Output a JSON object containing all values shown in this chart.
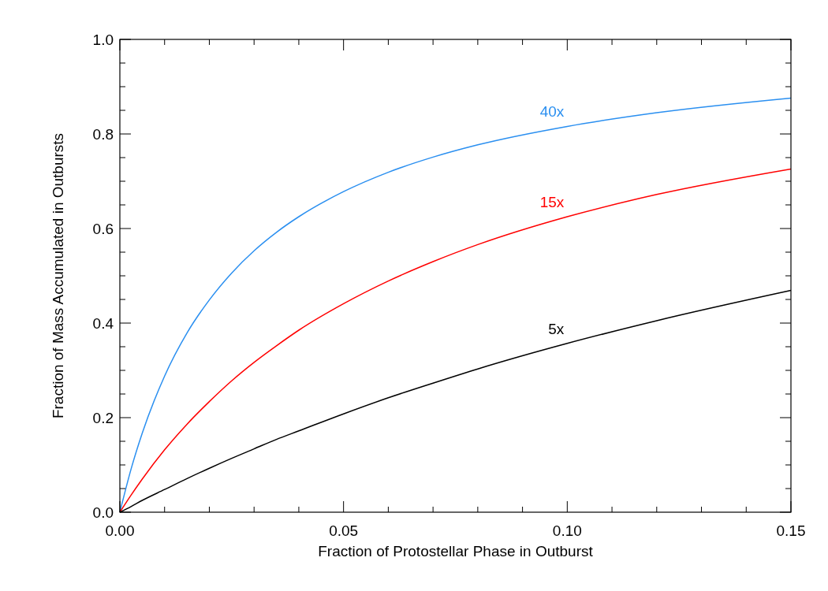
{
  "chart_data": {
    "type": "line",
    "xlabel": "Fraction of Protostellar Phase in Outburst",
    "ylabel": "Fraction of Mass Accumulated in Outbursts",
    "x": [
      0,
      0.0025,
      0.005,
      0.01,
      0.015,
      0.02,
      0.025,
      0.03,
      0.035,
      0.04,
      0.05,
      0.06,
      0.07,
      0.08,
      0.1,
      0.12,
      0.15
    ],
    "series": [
      {
        "name": "40x",
        "color": "#2a8ff0",
        "values": [
          0,
          0.091,
          0.167,
          0.288,
          0.379,
          0.449,
          0.506,
          0.553,
          0.592,
          0.625,
          0.678,
          0.719,
          0.751,
          0.777,
          0.816,
          0.845,
          0.876
        ]
      },
      {
        "name": "15x",
        "color": "#ff0000",
        "values": [
          0,
          0.036,
          0.07,
          0.132,
          0.186,
          0.234,
          0.278,
          0.317,
          0.352,
          0.385,
          0.441,
          0.489,
          0.53,
          0.566,
          0.625,
          0.672,
          0.726
        ]
      },
      {
        "name": "5x",
        "color": "#000000",
        "values": [
          0,
          0.012,
          0.025,
          0.048,
          0.071,
          0.093,
          0.114,
          0.134,
          0.154,
          0.172,
          0.208,
          0.242,
          0.273,
          0.303,
          0.357,
          0.405,
          0.469
        ]
      }
    ],
    "xlim": [
      0,
      0.15
    ],
    "xticks": [
      "0.00",
      {
        "value": 0.01,
        "label": null
      },
      {
        "value": 0.02,
        "label": null
      },
      {
        "value": 0.03,
        "label": null
      },
      {
        "value": 0.04,
        "label": null
      },
      {
        "value": 0.05,
        "label": "0.05"
      },
      {
        "value": 0.06,
        "label": null
      },
      {
        "value": 0.07,
        "label": null
      },
      {
        "value": 0.08,
        "label": null
      },
      {
        "value": 0.09,
        "label": null
      },
      {
        "value": 0.1,
        "label": "0.10"
      },
      {
        "value": 0.11,
        "label": null
      },
      {
        "value": 0.12,
        "label": null
      },
      {
        "value": 0.13,
        "label": null
      },
      {
        "value": 0.14,
        "label": null
      },
      {
        "value": 0.15,
        "label": "0.15"
      }
    ],
    "ylim": [
      0,
      1
    ],
    "yticks": [
      {
        "value": 0,
        "label": "0.0"
      },
      {
        "value": 0.05,
        "label": null
      },
      {
        "value": 0.1,
        "label": null
      },
      {
        "value": 0.15,
        "label": null
      },
      {
        "value": 0.2,
        "label": "0.2"
      },
      {
        "value": 0.25,
        "label": null
      },
      {
        "value": 0.3,
        "label": null
      },
      {
        "value": 0.35,
        "label": null
      },
      {
        "value": 0.4,
        "label": "0.4"
      },
      {
        "value": 0.45,
        "label": null
      },
      {
        "value": 0.5,
        "label": null
      },
      {
        "value": 0.55,
        "label": null
      },
      {
        "value": 0.6,
        "label": "0.6"
      },
      {
        "value": 0.65,
        "label": null
      },
      {
        "value": 0.7,
        "label": null
      },
      {
        "value": 0.75,
        "label": null
      },
      {
        "value": 0.8,
        "label": "0.8"
      },
      {
        "value": 0.85,
        "label": null
      },
      {
        "value": 0.9,
        "label": null
      },
      {
        "value": 0.95,
        "label": null
      },
      {
        "value": 1,
        "label": "1.0"
      }
    ],
    "marker": "none",
    "line_style": "solid"
  }
}
